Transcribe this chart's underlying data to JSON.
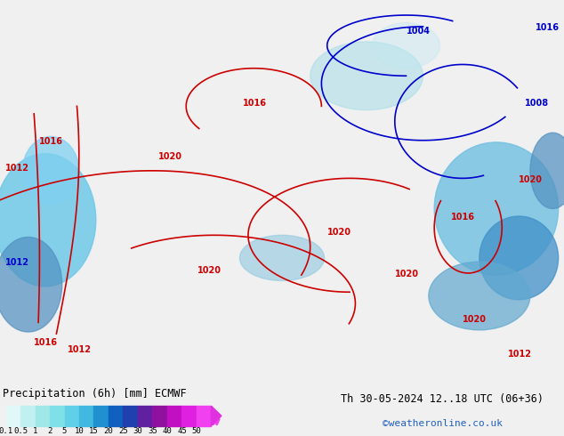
{
  "title_left": "Precipitation (6h) [mm] ECMWF",
  "title_right": "Th 30-05-2024 12..18 UTC (06+36)",
  "credit": "©weatheronline.co.uk",
  "colorbar_levels": [
    0.1,
    0.5,
    1,
    2,
    5,
    10,
    15,
    20,
    25,
    30,
    35,
    40,
    45,
    50
  ],
  "colorbar_colors": [
    "#e0f8f8",
    "#c0f0f0",
    "#a0e8e8",
    "#80e0e8",
    "#60d0e8",
    "#40b8e0",
    "#2090d0",
    "#1060c0",
    "#2040b0",
    "#6020a0",
    "#9010a0",
    "#c010c0",
    "#e020e0",
    "#f040f0"
  ],
  "bg_color": "#f0f0f0",
  "map_bg": "#d8e8d8",
  "fig_width": 6.34,
  "fig_height": 4.9,
  "dpi": 100
}
